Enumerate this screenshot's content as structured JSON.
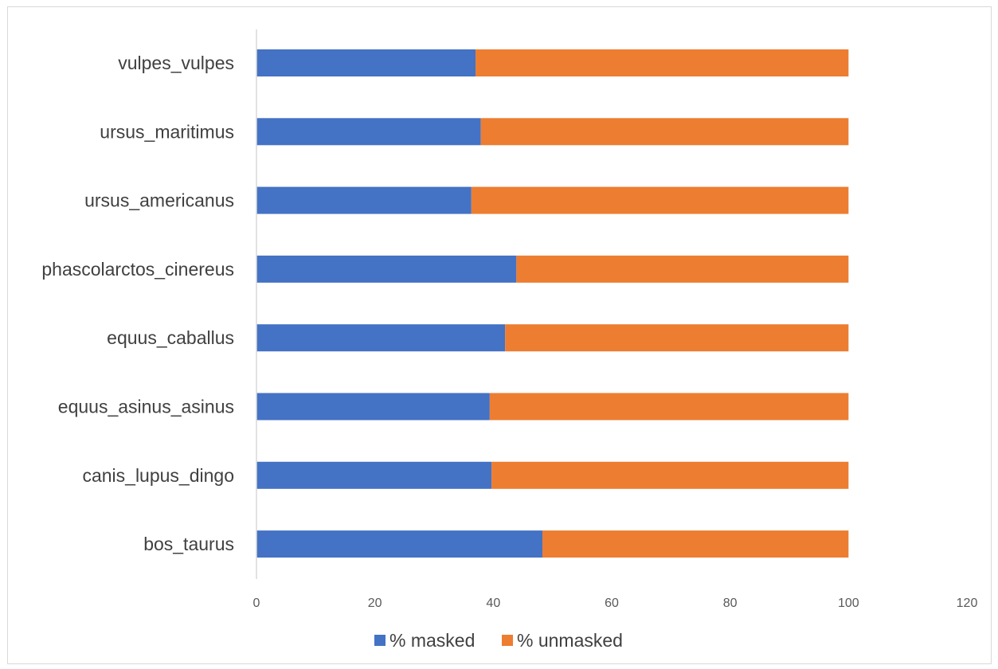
{
  "chart_data": {
    "type": "bar",
    "orientation": "horizontal",
    "stacked": true,
    "title": "",
    "xlabel": "",
    "ylabel": "",
    "categories": [
      "bos_taurus",
      "canis_lupus_dingo",
      "equus_asinus_asinus",
      "equus_caballus",
      "phascolarctos_cinereus",
      "ursus_americanus",
      "ursus_maritimus",
      "vulpes_vulpes"
    ],
    "series": [
      {
        "name": "% masked",
        "color": "#4472c4",
        "values": [
          48.3,
          39.7,
          39.4,
          42.0,
          43.9,
          36.3,
          37.9,
          37.0
        ]
      },
      {
        "name": "% unmasked",
        "color": "#ed7d31",
        "values": [
          51.7,
          60.3,
          60.6,
          58.0,
          56.1,
          63.7,
          62.1,
          63.0
        ]
      }
    ],
    "xlim": [
      0,
      120
    ],
    "xticks": [
      "0",
      "20",
      "40",
      "60",
      "80",
      "100",
      "120"
    ],
    "grid": false,
    "legend_position": "bottom"
  }
}
